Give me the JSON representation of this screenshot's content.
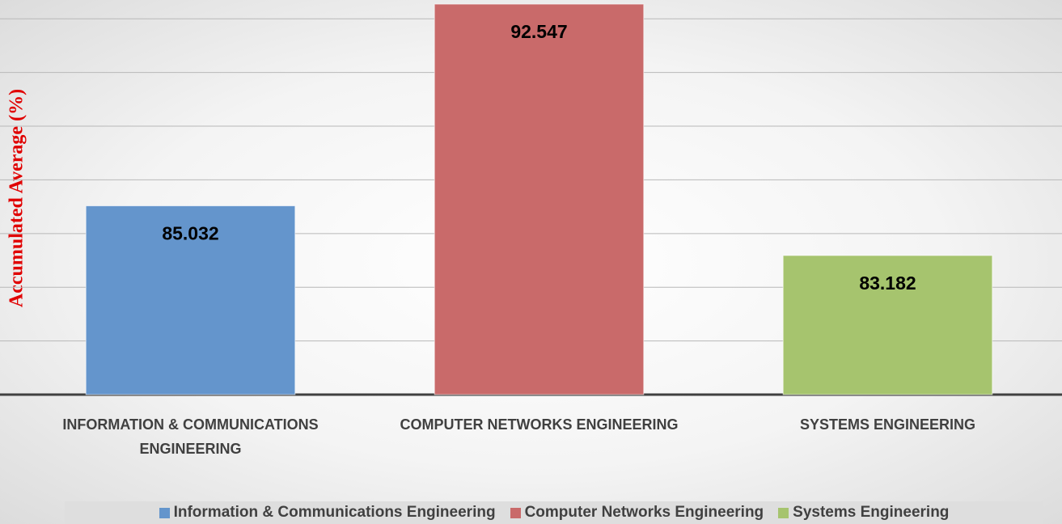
{
  "chart_data": {
    "type": "bar",
    "y_label": "Accumulated Average (%)",
    "categories": [
      "INFORMATION & COMMUNICATIONS ENGINEERING",
      "COMPUTER NETWORKS ENGINEERING",
      "SYSTEMS ENGINEERING"
    ],
    "series": [
      {
        "name": "Information & Communications Engineering",
        "color": "#6495cc",
        "values": [
          85.032,
          null,
          null
        ]
      },
      {
        "name": "Computer Networks Engineering",
        "color": "#c96a6a",
        "values": [
          null,
          92.547,
          null
        ]
      },
      {
        "name": "Systems Engineering",
        "color": "#a6c46e",
        "values": [
          null,
          null,
          83.182
        ]
      }
    ],
    "ylim": [
      78,
      92.7
    ],
    "yticks": [
      80,
      82,
      84,
      86,
      88,
      90,
      92
    ],
    "grid": true,
    "tick_labels": false,
    "legend": "bottom"
  }
}
